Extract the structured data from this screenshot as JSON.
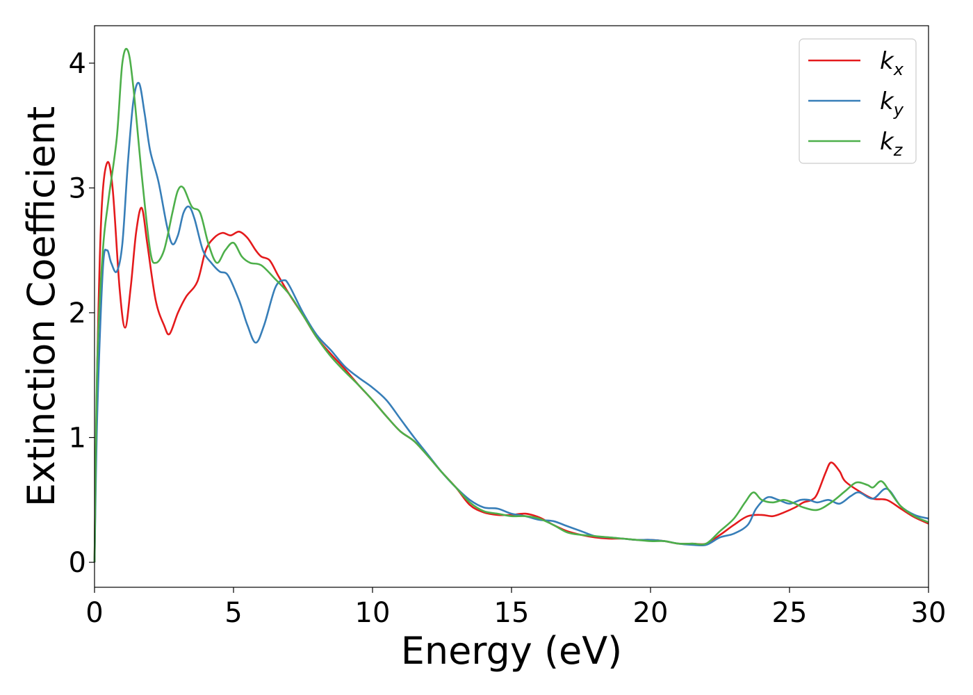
{
  "chart_data": {
    "type": "line",
    "xlabel": "Energy (eV)",
    "ylabel": "Extinction Coefficient",
    "xlim": [
      0,
      30
    ],
    "ylim": [
      -0.2,
      4.3
    ],
    "xticks": [
      0,
      5,
      10,
      15,
      20,
      25,
      30
    ],
    "yticks": [
      0,
      1,
      2,
      3,
      4
    ],
    "grid": false,
    "legend_position": "top-right",
    "series": [
      {
        "name": "k_x",
        "label_main": "k",
        "label_sub": "x",
        "color": "#e41a1c",
        "points": [
          [
            0,
            0
          ],
          [
            0.1,
            1.6
          ],
          [
            0.25,
            2.8
          ],
          [
            0.45,
            3.2
          ],
          [
            0.65,
            3.0
          ],
          [
            0.9,
            2.2
          ],
          [
            1.1,
            1.88
          ],
          [
            1.3,
            2.2
          ],
          [
            1.5,
            2.65
          ],
          [
            1.7,
            2.84
          ],
          [
            1.9,
            2.55
          ],
          [
            2.2,
            2.1
          ],
          [
            2.5,
            1.9
          ],
          [
            2.7,
            1.83
          ],
          [
            3.0,
            2.0
          ],
          [
            3.3,
            2.13
          ],
          [
            3.7,
            2.25
          ],
          [
            4.0,
            2.5
          ],
          [
            4.3,
            2.6
          ],
          [
            4.6,
            2.64
          ],
          [
            4.9,
            2.62
          ],
          [
            5.2,
            2.65
          ],
          [
            5.5,
            2.6
          ],
          [
            5.8,
            2.5
          ],
          [
            6.0,
            2.45
          ],
          [
            6.3,
            2.42
          ],
          [
            6.6,
            2.3
          ],
          [
            7.0,
            2.15
          ],
          [
            7.5,
            1.98
          ],
          [
            8.0,
            1.8
          ],
          [
            8.5,
            1.67
          ],
          [
            9.0,
            1.55
          ],
          [
            9.5,
            1.42
          ],
          [
            10.0,
            1.3
          ],
          [
            10.5,
            1.17
          ],
          [
            11.0,
            1.05
          ],
          [
            11.5,
            0.97
          ],
          [
            12.0,
            0.85
          ],
          [
            12.5,
            0.72
          ],
          [
            13.0,
            0.6
          ],
          [
            13.5,
            0.46
          ],
          [
            14.0,
            0.4
          ],
          [
            14.5,
            0.38
          ],
          [
            15.0,
            0.38
          ],
          [
            15.5,
            0.39
          ],
          [
            16.0,
            0.36
          ],
          [
            16.5,
            0.3
          ],
          [
            17.0,
            0.25
          ],
          [
            17.5,
            0.22
          ],
          [
            18.0,
            0.2
          ],
          [
            18.5,
            0.19
          ],
          [
            19.0,
            0.19
          ],
          [
            19.5,
            0.18
          ],
          [
            20.0,
            0.18
          ],
          [
            20.5,
            0.17
          ],
          [
            21.0,
            0.15
          ],
          [
            21.5,
            0.15
          ],
          [
            22.0,
            0.15
          ],
          [
            22.5,
            0.22
          ],
          [
            23.0,
            0.3
          ],
          [
            23.5,
            0.37
          ],
          [
            24.0,
            0.38
          ],
          [
            24.4,
            0.37
          ],
          [
            24.8,
            0.4
          ],
          [
            25.2,
            0.44
          ],
          [
            25.5,
            0.48
          ],
          [
            25.8,
            0.5
          ],
          [
            26.0,
            0.55
          ],
          [
            26.3,
            0.72
          ],
          [
            26.5,
            0.8
          ],
          [
            26.8,
            0.73
          ],
          [
            27.0,
            0.65
          ],
          [
            27.5,
            0.57
          ],
          [
            28.0,
            0.51
          ],
          [
            28.5,
            0.5
          ],
          [
            29.0,
            0.43
          ],
          [
            29.5,
            0.36
          ],
          [
            30.0,
            0.31
          ]
        ]
      },
      {
        "name": "k_y",
        "label_main": "k",
        "label_sub": "y",
        "color": "#377eb8",
        "points": [
          [
            0,
            0
          ],
          [
            0.1,
            1.2
          ],
          [
            0.3,
            2.35
          ],
          [
            0.45,
            2.5
          ],
          [
            0.6,
            2.4
          ],
          [
            0.8,
            2.33
          ],
          [
            1.0,
            2.55
          ],
          [
            1.2,
            3.2
          ],
          [
            1.4,
            3.7
          ],
          [
            1.6,
            3.84
          ],
          [
            1.8,
            3.6
          ],
          [
            2.0,
            3.3
          ],
          [
            2.3,
            3.05
          ],
          [
            2.6,
            2.7
          ],
          [
            2.8,
            2.55
          ],
          [
            3.0,
            2.62
          ],
          [
            3.2,
            2.8
          ],
          [
            3.4,
            2.85
          ],
          [
            3.6,
            2.75
          ],
          [
            3.9,
            2.5
          ],
          [
            4.2,
            2.4
          ],
          [
            4.5,
            2.33
          ],
          [
            4.8,
            2.3
          ],
          [
            5.2,
            2.1
          ],
          [
            5.5,
            1.9
          ],
          [
            5.8,
            1.76
          ],
          [
            6.1,
            1.9
          ],
          [
            6.5,
            2.2
          ],
          [
            6.8,
            2.26
          ],
          [
            7.0,
            2.22
          ],
          [
            7.5,
            2.0
          ],
          [
            8.0,
            1.82
          ],
          [
            8.5,
            1.7
          ],
          [
            9.0,
            1.57
          ],
          [
            9.5,
            1.48
          ],
          [
            10.0,
            1.4
          ],
          [
            10.5,
            1.3
          ],
          [
            11.0,
            1.15
          ],
          [
            11.5,
            1.0
          ],
          [
            12.0,
            0.86
          ],
          [
            12.5,
            0.72
          ],
          [
            13.0,
            0.6
          ],
          [
            13.5,
            0.5
          ],
          [
            14.0,
            0.44
          ],
          [
            14.5,
            0.43
          ],
          [
            15.0,
            0.39
          ],
          [
            15.5,
            0.37
          ],
          [
            16.0,
            0.34
          ],
          [
            16.5,
            0.33
          ],
          [
            17.0,
            0.29
          ],
          [
            17.5,
            0.25
          ],
          [
            18.0,
            0.21
          ],
          [
            18.5,
            0.2
          ],
          [
            19.0,
            0.19
          ],
          [
            19.5,
            0.18
          ],
          [
            20.0,
            0.18
          ],
          [
            20.5,
            0.17
          ],
          [
            21.0,
            0.15
          ],
          [
            21.5,
            0.14
          ],
          [
            22.0,
            0.14
          ],
          [
            22.5,
            0.2
          ],
          [
            23.0,
            0.23
          ],
          [
            23.5,
            0.3
          ],
          [
            23.8,
            0.43
          ],
          [
            24.2,
            0.52
          ],
          [
            24.6,
            0.5
          ],
          [
            25.0,
            0.47
          ],
          [
            25.4,
            0.5
          ],
          [
            25.7,
            0.5
          ],
          [
            26.0,
            0.48
          ],
          [
            26.4,
            0.5
          ],
          [
            26.8,
            0.47
          ],
          [
            27.2,
            0.53
          ],
          [
            27.5,
            0.56
          ],
          [
            28.0,
            0.51
          ],
          [
            28.5,
            0.59
          ],
          [
            29.0,
            0.45
          ],
          [
            29.5,
            0.38
          ],
          [
            30.0,
            0.35
          ]
        ]
      },
      {
        "name": "k_z",
        "label_main": "k",
        "label_sub": "z",
        "color": "#4daf4a",
        "points": [
          [
            0,
            0
          ],
          [
            0.1,
            1.6
          ],
          [
            0.3,
            2.5
          ],
          [
            0.5,
            2.9
          ],
          [
            0.8,
            3.4
          ],
          [
            1.0,
            4.0
          ],
          [
            1.2,
            4.1
          ],
          [
            1.4,
            3.8
          ],
          [
            1.7,
            3.1
          ],
          [
            2.0,
            2.5
          ],
          [
            2.2,
            2.4
          ],
          [
            2.5,
            2.5
          ],
          [
            2.8,
            2.8
          ],
          [
            3.0,
            2.98
          ],
          [
            3.2,
            3.0
          ],
          [
            3.5,
            2.85
          ],
          [
            3.8,
            2.8
          ],
          [
            4.1,
            2.55
          ],
          [
            4.4,
            2.4
          ],
          [
            4.7,
            2.5
          ],
          [
            5.0,
            2.56
          ],
          [
            5.3,
            2.45
          ],
          [
            5.6,
            2.4
          ],
          [
            6.0,
            2.38
          ],
          [
            6.5,
            2.27
          ],
          [
            7.0,
            2.15
          ],
          [
            7.5,
            1.98
          ],
          [
            8.0,
            1.8
          ],
          [
            8.5,
            1.65
          ],
          [
            9.0,
            1.53
          ],
          [
            9.5,
            1.42
          ],
          [
            10.0,
            1.3
          ],
          [
            10.5,
            1.17
          ],
          [
            11.0,
            1.05
          ],
          [
            11.5,
            0.97
          ],
          [
            12.0,
            0.85
          ],
          [
            12.5,
            0.72
          ],
          [
            13.0,
            0.6
          ],
          [
            13.5,
            0.48
          ],
          [
            14.0,
            0.41
          ],
          [
            14.5,
            0.39
          ],
          [
            15.0,
            0.37
          ],
          [
            15.5,
            0.37
          ],
          [
            16.0,
            0.35
          ],
          [
            16.5,
            0.3
          ],
          [
            17.0,
            0.24
          ],
          [
            17.5,
            0.22
          ],
          [
            18.0,
            0.21
          ],
          [
            18.5,
            0.2
          ],
          [
            19.0,
            0.19
          ],
          [
            19.5,
            0.18
          ],
          [
            20.0,
            0.17
          ],
          [
            20.5,
            0.17
          ],
          [
            21.0,
            0.15
          ],
          [
            21.5,
            0.15
          ],
          [
            22.0,
            0.15
          ],
          [
            22.5,
            0.25
          ],
          [
            23.0,
            0.35
          ],
          [
            23.4,
            0.48
          ],
          [
            23.7,
            0.56
          ],
          [
            24.0,
            0.5
          ],
          [
            24.4,
            0.48
          ],
          [
            24.8,
            0.5
          ],
          [
            25.2,
            0.47
          ],
          [
            25.5,
            0.44
          ],
          [
            26.0,
            0.42
          ],
          [
            26.5,
            0.48
          ],
          [
            27.0,
            0.57
          ],
          [
            27.4,
            0.64
          ],
          [
            27.8,
            0.62
          ],
          [
            28.0,
            0.6
          ],
          [
            28.3,
            0.65
          ],
          [
            28.6,
            0.57
          ],
          [
            29.0,
            0.45
          ],
          [
            29.5,
            0.37
          ],
          [
            30.0,
            0.32
          ]
        ]
      }
    ]
  }
}
